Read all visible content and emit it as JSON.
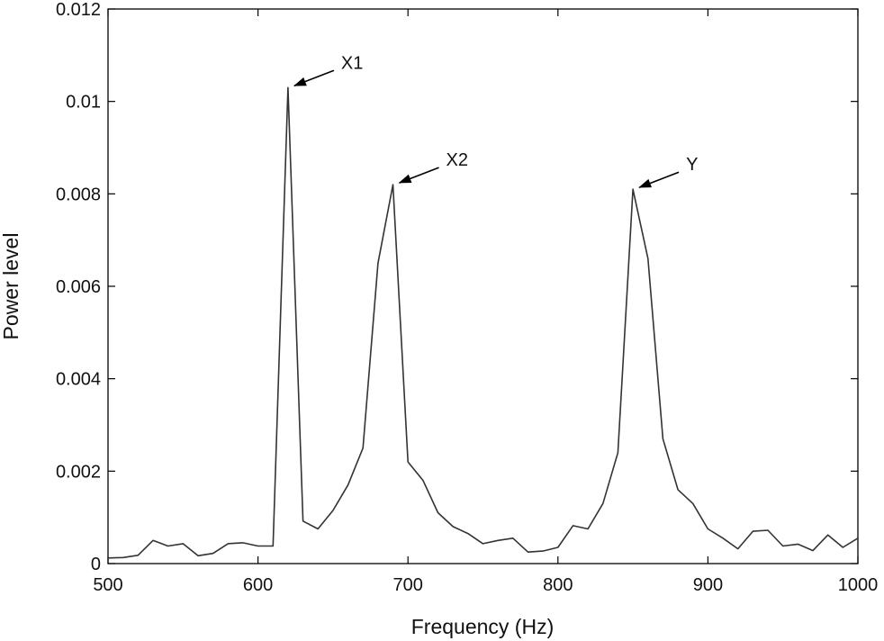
{
  "chart_data": {
    "type": "line",
    "title": "",
    "xlabel": "Frequency (Hz)",
    "ylabel": "Power level",
    "xlim": [
      500,
      1000
    ],
    "ylim": [
      0,
      0.012
    ],
    "xticks": [
      500,
      600,
      700,
      800,
      900,
      1000
    ],
    "yticks": [
      0,
      0.002,
      0.004,
      0.006,
      0.008,
      0.01,
      0.012
    ],
    "xtick_labels": [
      "500",
      "600",
      "700",
      "800",
      "900",
      "1000"
    ],
    "ytick_labels": [
      "0",
      "0.002",
      "0.004",
      "0.006",
      "0.008",
      "0.01",
      "0.012"
    ],
    "grid": false,
    "line_color": "#333333",
    "series": [
      {
        "x": [
          500,
          510,
          520,
          530,
          540,
          550,
          560,
          570,
          580,
          590,
          600,
          610,
          620,
          630,
          640,
          650,
          660,
          670,
          680,
          690,
          700,
          710,
          720,
          730,
          740,
          750,
          760,
          770,
          780,
          790,
          800,
          810,
          820,
          830,
          840,
          850,
          860,
          870,
          880,
          890,
          900,
          910,
          920,
          930,
          940,
          950,
          960,
          970,
          980,
          990,
          1000
        ],
        "y": [
          0.00012,
          0.00013,
          0.00018,
          0.0005,
          0.00038,
          0.00043,
          0.00017,
          0.00022,
          0.00043,
          0.00045,
          0.00038,
          0.00038,
          0.0103,
          0.00092,
          0.00075,
          0.00115,
          0.0017,
          0.0025,
          0.0065,
          0.0082,
          0.0022,
          0.0018,
          0.0011,
          0.0008,
          0.00065,
          0.00043,
          0.0005,
          0.00055,
          0.00025,
          0.00027,
          0.00035,
          0.00082,
          0.00075,
          0.0013,
          0.0024,
          0.0081,
          0.0066,
          0.0027,
          0.0016,
          0.0013,
          0.00075,
          0.00055,
          0.00032,
          0.0007,
          0.00072,
          0.00038,
          0.00042,
          0.00028,
          0.00062,
          0.00035,
          0.00055
        ]
      }
    ],
    "annotations": [
      {
        "text": "X1",
        "x": 620,
        "y": 0.0103
      },
      {
        "text": "X2",
        "x": 690,
        "y": 0.0082
      },
      {
        "text": "Y",
        "x": 850,
        "y": 0.0081
      }
    ]
  }
}
